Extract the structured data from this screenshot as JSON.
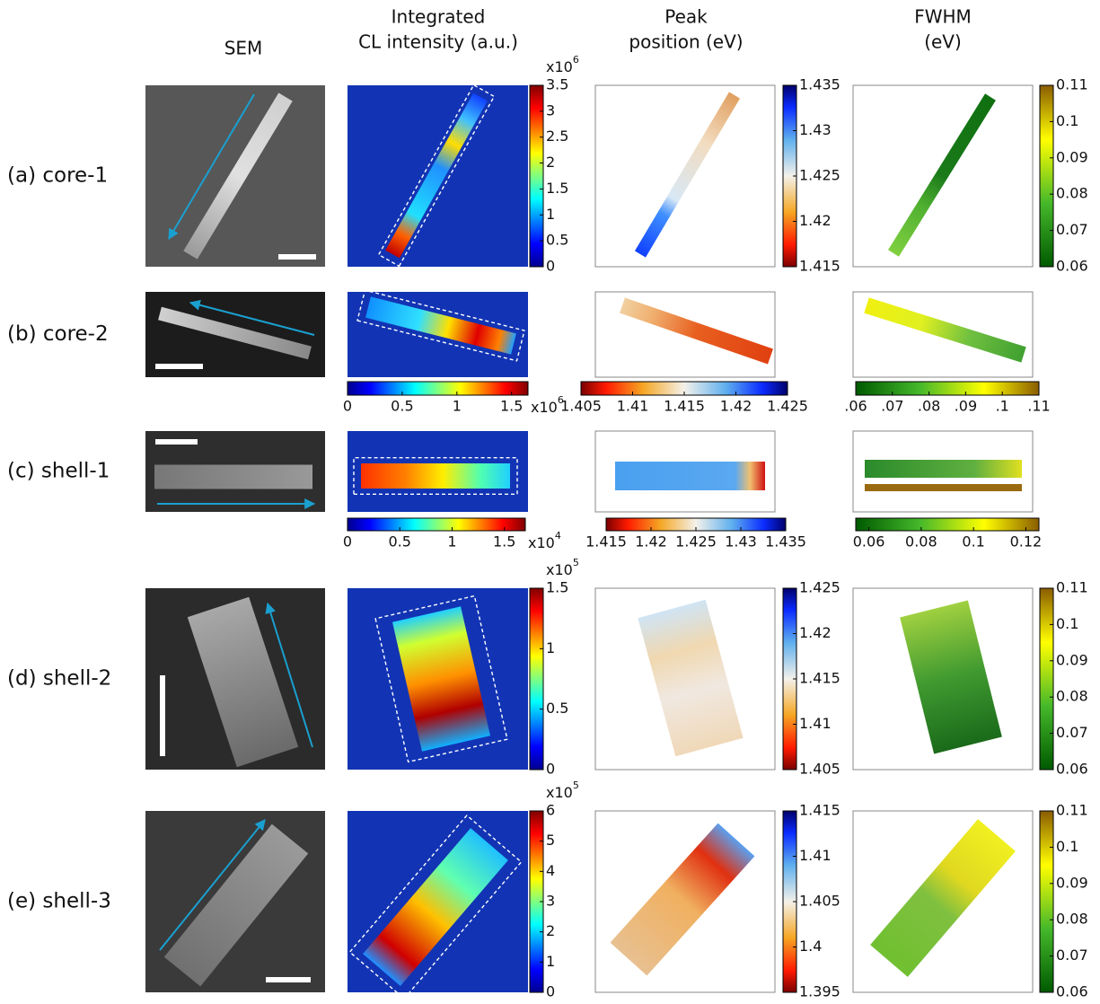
{
  "columns": [
    [
      "SEM"
    ],
    [
      "Integrated",
      "CL intensity (a.u.)"
    ],
    [
      "Peak",
      "position (eV)"
    ],
    [
      "FWHM",
      "(eV)"
    ]
  ],
  "rows": [
    {
      "label": "(a) core-1",
      "colorbars": [
        {
          "orientation": "vertical",
          "colormap": "jet",
          "lim": [
            0,
            3.5
          ],
          "ticks": [
            0,
            0.5,
            1,
            1.5,
            2,
            2.5,
            3,
            3.5
          ],
          "multiplier": {
            "base": "x10",
            "exponent": "6"
          }
        },
        {
          "orientation": "vertical",
          "colormap": "red-white-blue",
          "lim": [
            1.415,
            1.435
          ],
          "ticks": [
            1.415,
            1.42,
            1.425,
            1.43,
            1.435
          ]
        },
        {
          "orientation": "vertical",
          "colormap": "green-yellow-brown",
          "lim": [
            0.06,
            0.11
          ],
          "ticks": [
            0.06,
            0.07,
            0.08,
            0.09,
            0.1,
            0.11
          ]
        }
      ]
    },
    {
      "label": "(b) core-2",
      "colorbars": [
        {
          "orientation": "horizontal",
          "colormap": "jet",
          "lim": [
            0,
            1.65
          ],
          "ticks": [
            0,
            0.5,
            1,
            1.5
          ],
          "multiplier": {
            "base": "x10",
            "exponent": "6"
          }
        },
        {
          "orientation": "horizontal",
          "colormap": "red-white-blue",
          "lim": [
            1.405,
            1.425
          ],
          "ticks": [
            1.405,
            1.41,
            1.415,
            1.42,
            1.425
          ]
        },
        {
          "orientation": "horizontal",
          "colormap": "green-yellow-brown",
          "lim": [
            0.06,
            0.11
          ],
          "ticks": [
            {
              "value": 0.06,
              "label": ".06"
            },
            {
              "value": 0.07,
              "label": ".07"
            },
            {
              "value": 0.08,
              "label": ".08"
            },
            {
              "value": 0.09,
              "label": ".09"
            },
            {
              "value": 0.1,
              "label": ".1"
            },
            {
              "value": 0.11,
              "label": ".11"
            }
          ]
        }
      ]
    },
    {
      "label": "(c) shell-1",
      "colorbars": [
        {
          "orientation": "horizontal",
          "colormap": "jet",
          "lim": [
            0,
            1.7
          ],
          "ticks": [
            0,
            0.5,
            1,
            1.5
          ],
          "multiplier": {
            "base": "x10",
            "exponent": "4"
          }
        },
        {
          "orientation": "horizontal",
          "colormap": "red-white-blue",
          "lim": [
            1.415,
            1.435
          ],
          "ticks": [
            1.415,
            1.42,
            1.425,
            1.43,
            1.435
          ]
        },
        {
          "orientation": "horizontal",
          "colormap": "green-yellow-brown",
          "lim": [
            0.055,
            0.125
          ],
          "ticks": [
            0.06,
            0.08,
            0.1,
            0.12
          ]
        }
      ]
    },
    {
      "label": "(d) shell-2",
      "colorbars": [
        {
          "orientation": "vertical",
          "colormap": "jet",
          "lim": [
            0,
            1.5
          ],
          "ticks": [
            0,
            0.5,
            1,
            1.5
          ],
          "multiplier": {
            "base": "x10",
            "exponent": "5"
          }
        },
        {
          "orientation": "vertical",
          "colormap": "red-white-blue",
          "lim": [
            1.405,
            1.425
          ],
          "ticks": [
            1.405,
            1.41,
            1.415,
            1.42,
            1.425
          ]
        },
        {
          "orientation": "vertical",
          "colormap": "green-yellow-brown",
          "lim": [
            0.06,
            0.11
          ],
          "ticks": [
            0.06,
            0.07,
            0.08,
            0.09,
            0.1,
            0.11
          ]
        }
      ]
    },
    {
      "label": "(e) shell-3",
      "colorbars": [
        {
          "orientation": "vertical",
          "colormap": "jet",
          "lim": [
            0,
            6
          ],
          "ticks": [
            0,
            1,
            2,
            3,
            4,
            5,
            6
          ],
          "multiplier": {
            "base": "x10",
            "exponent": "5"
          }
        },
        {
          "orientation": "vertical",
          "colormap": "red-white-blue",
          "lim": [
            1.395,
            1.415
          ],
          "ticks": [
            1.395,
            1.4,
            1.405,
            1.41,
            1.415
          ]
        },
        {
          "orientation": "vertical",
          "colormap": "green-yellow-brown",
          "lim": [
            0.06,
            0.11
          ],
          "ticks": [
            0.06,
            0.07,
            0.08,
            0.09,
            0.1,
            0.11
          ]
        }
      ]
    }
  ]
}
